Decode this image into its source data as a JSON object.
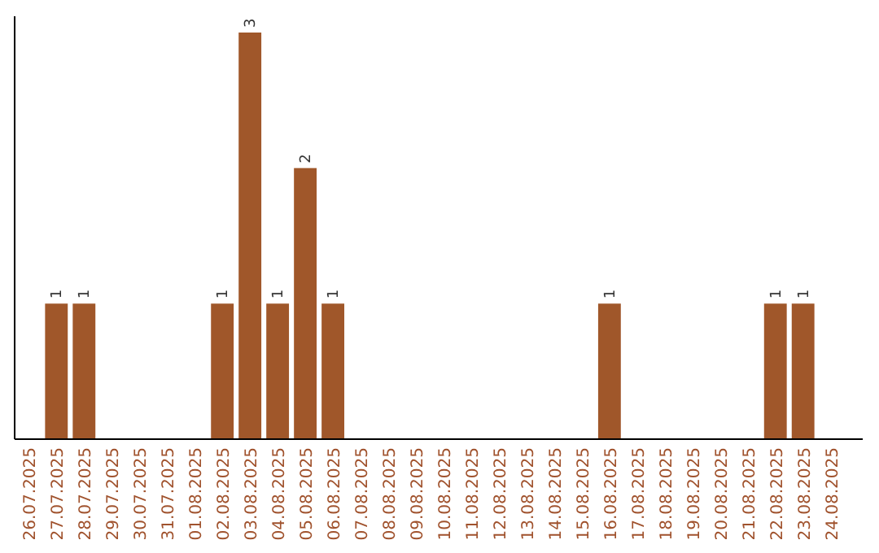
{
  "chart_data": {
    "type": "bar",
    "categories": [
      "26.07.2025",
      "27.07.2025",
      "28.07.2025",
      "29.07.2025",
      "30.07.2025",
      "31.07.2025",
      "01.08.2025",
      "02.08.2025",
      "03.08.2025",
      "04.08.2025",
      "05.08.2025",
      "06.08.2025",
      "07.08.2025",
      "08.08.2025",
      "09.08.2025",
      "10.08.2025",
      "11.08.2025",
      "12.08.2025",
      "13.08.2025",
      "14.08.2025",
      "15.08.2025",
      "16.08.2025",
      "17.08.2025",
      "18.08.2025",
      "19.08.2025",
      "20.08.2025",
      "21.08.2025",
      "22.08.2025",
      "23.08.2025",
      "24.08.2025"
    ],
    "values": [
      0,
      1,
      1,
      0,
      0,
      0,
      0,
      1,
      3,
      1,
      2,
      1,
      0,
      0,
      0,
      0,
      0,
      0,
      0,
      0,
      0,
      1,
      0,
      0,
      0,
      0,
      0,
      1,
      1,
      0
    ],
    "value_labels": [
      null,
      "1",
      "1",
      null,
      null,
      null,
      null,
      "1",
      "3",
      "1",
      "2",
      "1",
      null,
      null,
      null,
      null,
      null,
      null,
      null,
      null,
      null,
      "1",
      null,
      null,
      null,
      null,
      null,
      "1",
      "1",
      null
    ],
    "color": "#a0572a"
  }
}
